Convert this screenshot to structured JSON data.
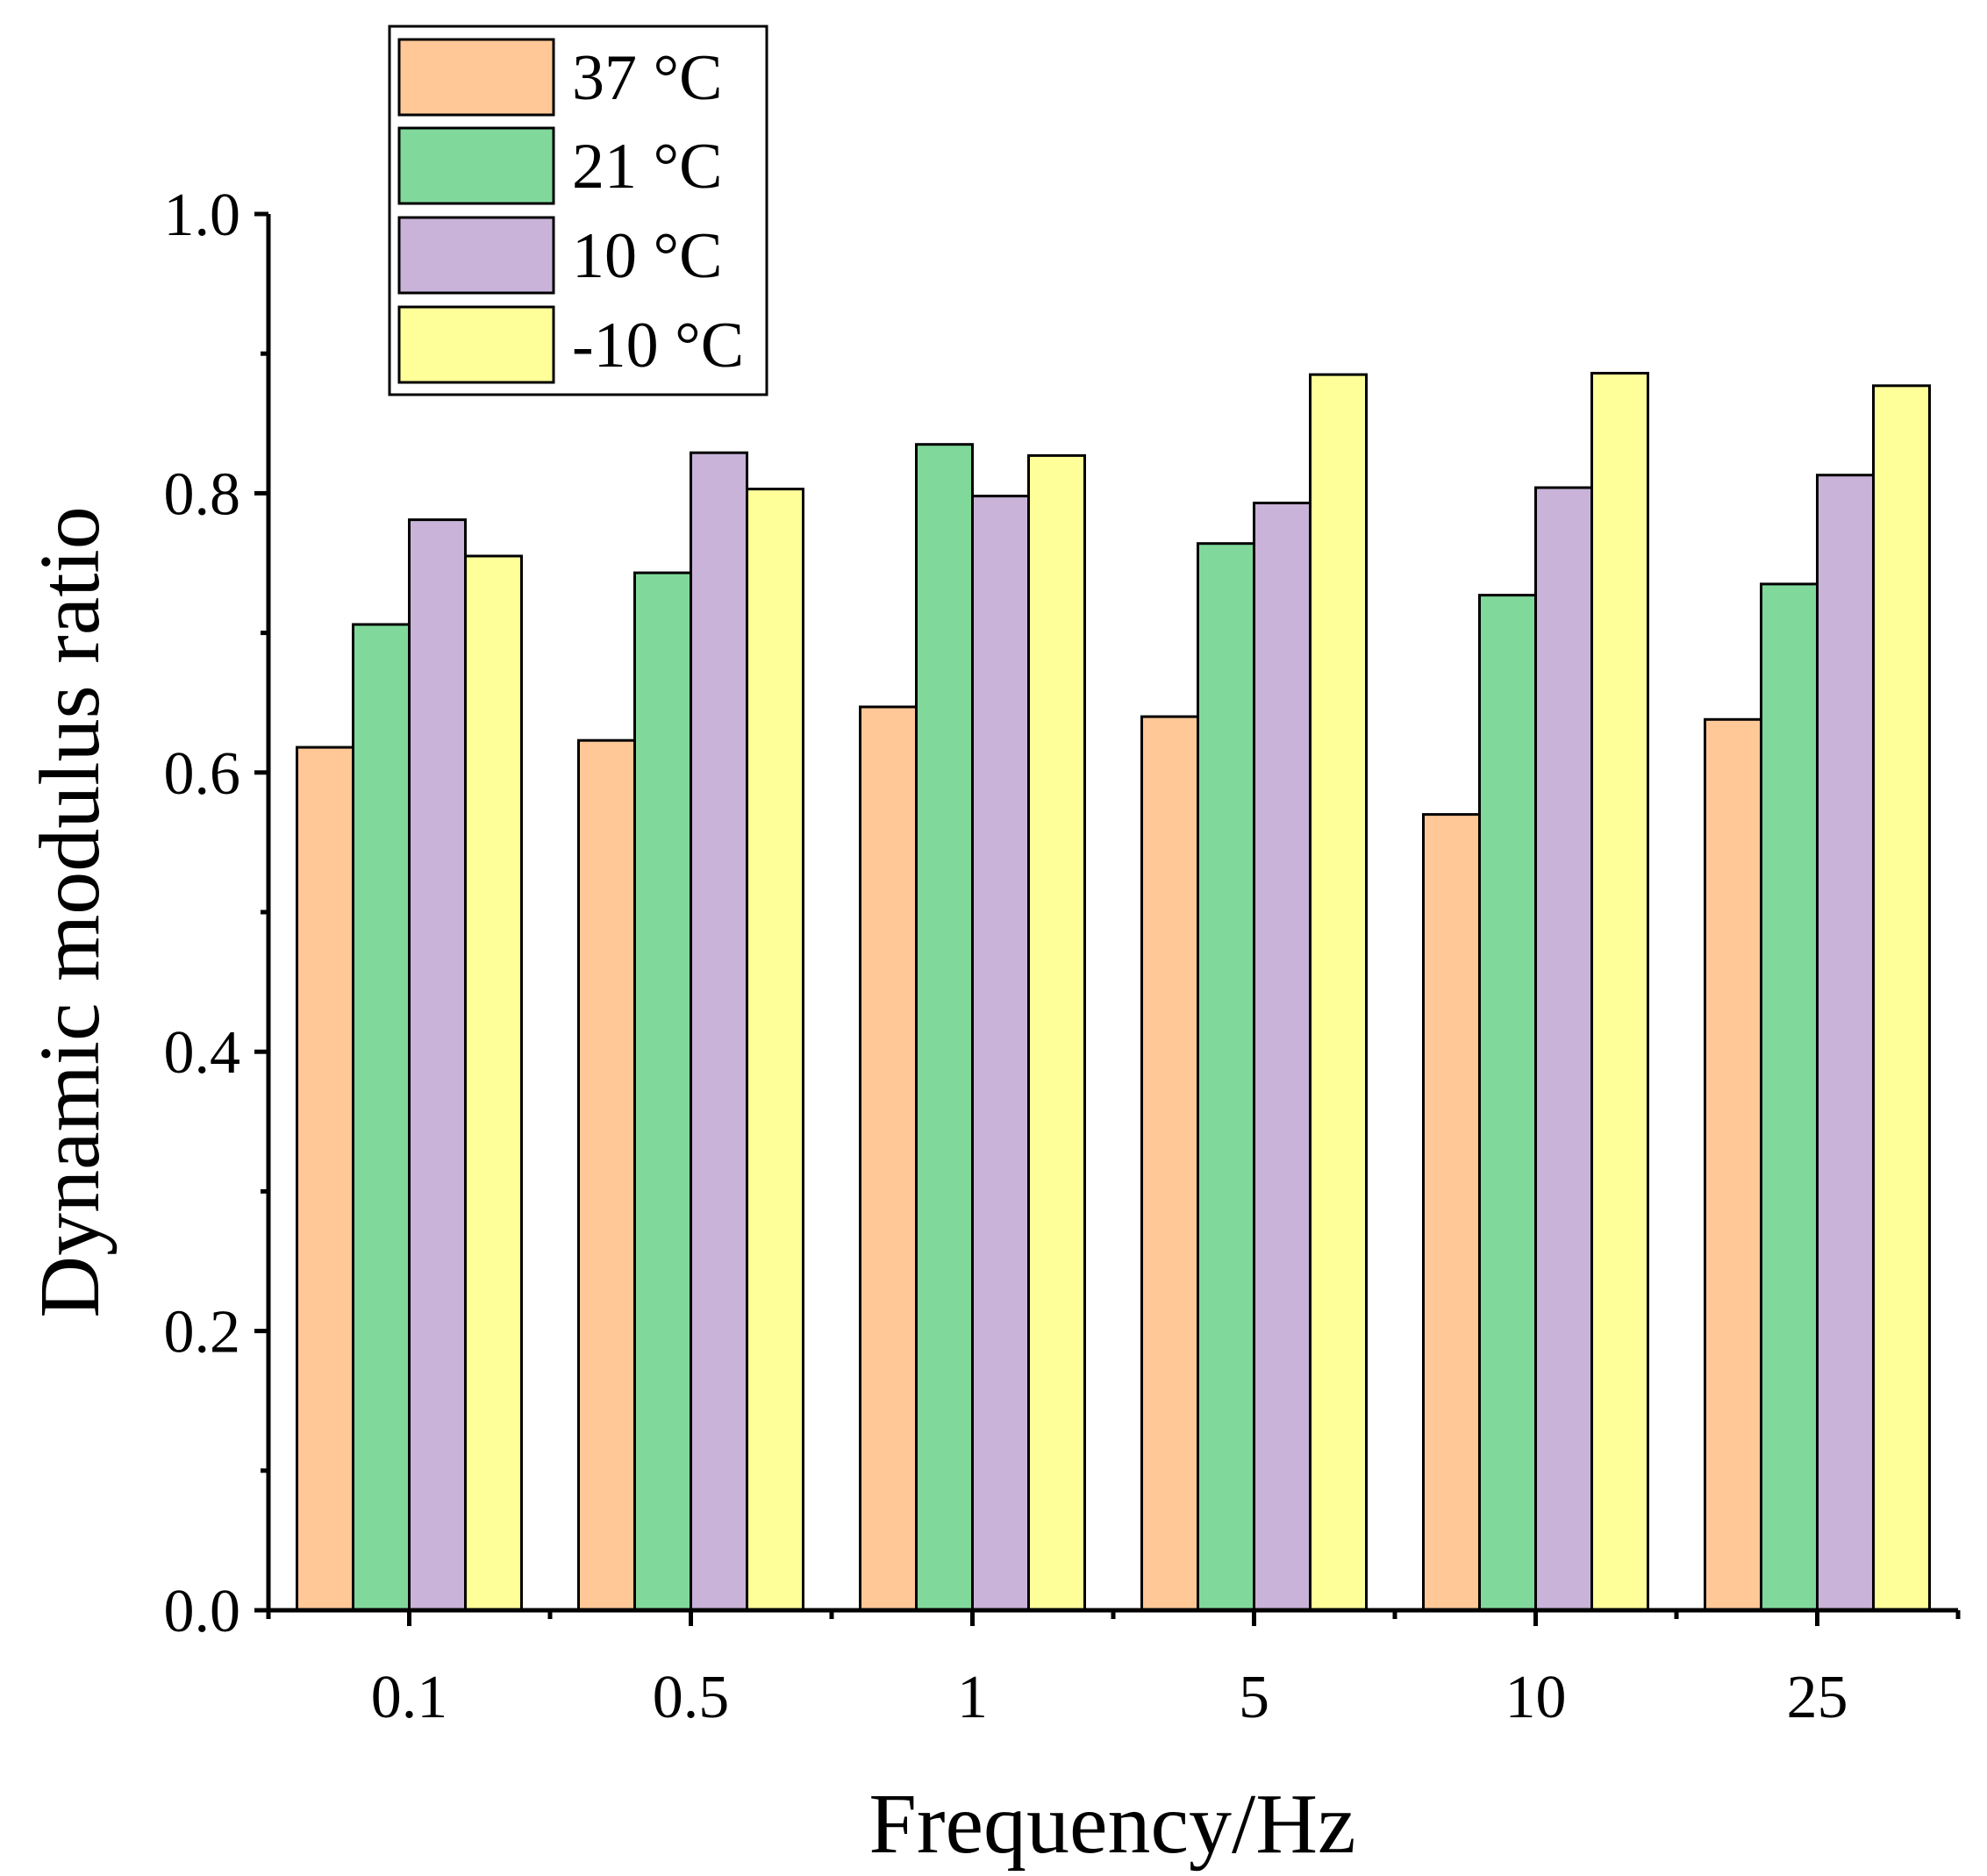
{
  "chart_data": {
    "type": "bar",
    "title": "",
    "xlabel": "Frequency/Hz",
    "ylabel": "Dynamic modulus ratio",
    "categories": [
      "0.1",
      "0.5",
      "1",
      "5",
      "10",
      "25"
    ],
    "ylim": [
      0,
      1.0
    ],
    "yticks": [
      "0.0",
      "0.2",
      "0.4",
      "0.6",
      "0.8",
      "1.0"
    ],
    "grid": false,
    "legend_position": "top-left",
    "series": [
      {
        "name": "37 °C",
        "color": "#FFC896",
        "values": [
          0.618,
          0.623,
          0.647,
          0.64,
          0.57,
          0.638
        ]
      },
      {
        "name": "21 °C",
        "color": "#80D99B",
        "values": [
          0.706,
          0.743,
          0.835,
          0.764,
          0.727,
          0.735
        ]
      },
      {
        "name": "10 °C",
        "color": "#C9B3D8",
        "values": [
          0.781,
          0.829,
          0.798,
          0.793,
          0.804,
          0.813
        ]
      },
      {
        "name": "-10 °C",
        "color": "#FFFF99",
        "values": [
          0.755,
          0.803,
          0.827,
          0.885,
          0.886,
          0.877
        ]
      }
    ]
  }
}
